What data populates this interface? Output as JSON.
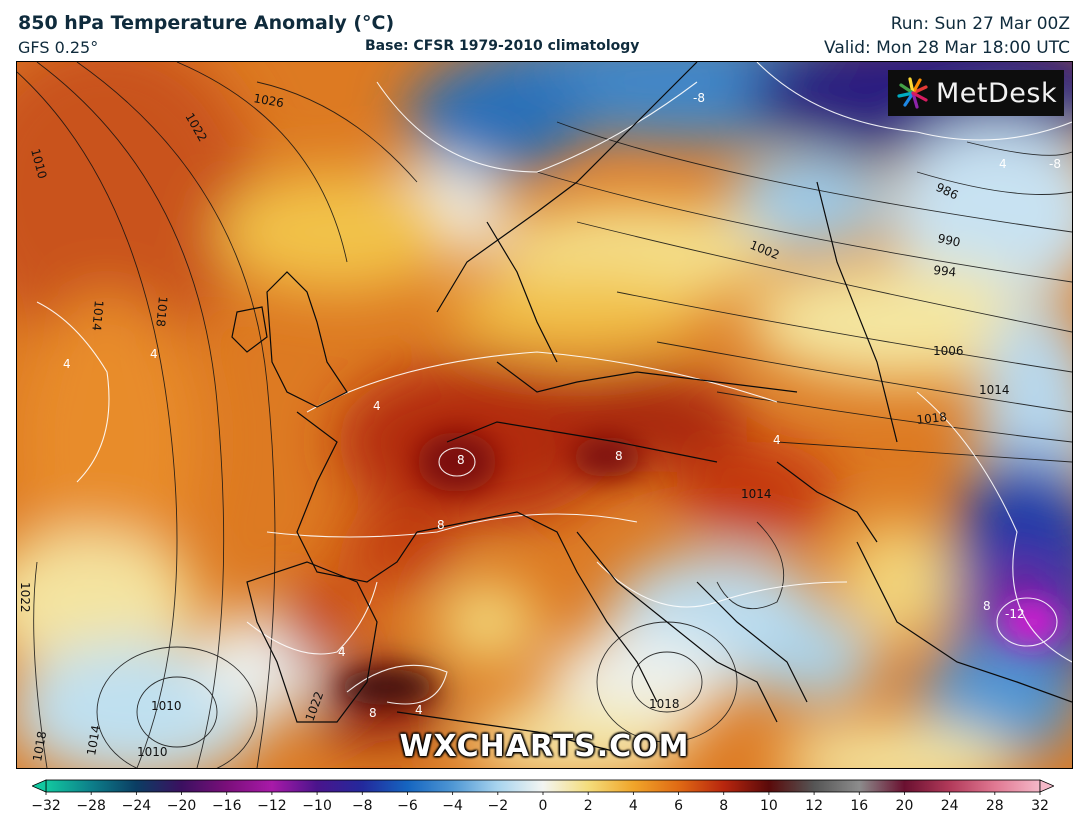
{
  "header": {
    "title": "850 hPa Temperature Anomaly (°C)",
    "model": "GFS 0.25°",
    "base": "Base: CFSR 1979-2010 climatology",
    "run": "Run: Sun 27 Mar 00Z",
    "valid": "Valid: Mon 28 Mar 18:00 UTC"
  },
  "branding": {
    "logo_text": "MetDesk",
    "watermark": "WXCHARTS.COM"
  },
  "isobar_labels": [
    {
      "text": "1026"
    },
    {
      "text": "1022"
    },
    {
      "text": "1010"
    },
    {
      "text": "1014"
    },
    {
      "text": "1018"
    },
    {
      "text": "986"
    },
    {
      "text": "990"
    },
    {
      "text": "994"
    },
    {
      "text": "1002"
    },
    {
      "text": "1006"
    },
    {
      "text": "1014"
    },
    {
      "text": "1018"
    },
    {
      "text": "1022"
    },
    {
      "text": "1010"
    },
    {
      "text": "1010"
    },
    {
      "text": "1014"
    },
    {
      "text": "1018"
    },
    {
      "text": "1018"
    },
    {
      "text": "1014"
    },
    {
      "text": "1022"
    }
  ],
  "anomaly_labels": [
    {
      "text": "-8"
    },
    {
      "text": "-8"
    },
    {
      "text": "4"
    },
    {
      "text": "4"
    },
    {
      "text": "4"
    },
    {
      "text": "8"
    },
    {
      "text": "8"
    },
    {
      "text": "8"
    },
    {
      "text": "4"
    },
    {
      "text": "8"
    },
    {
      "text": "4"
    },
    {
      "text": "8"
    },
    {
      "text": "-12"
    },
    {
      "text": "4"
    },
    {
      "text": "4"
    }
  ],
  "colorbar": {
    "ticks": [
      "-32",
      "-28",
      "-24",
      "-20",
      "-16",
      "-12",
      "-10",
      "-8",
      "-6",
      "-4",
      "-2",
      "0",
      "2",
      "4",
      "6",
      "8",
      "10",
      "12",
      "16",
      "20",
      "24",
      "28",
      "32"
    ],
    "colors": [
      "#12c8a0",
      "#0d7f8a",
      "#0b3d63",
      "#3b1060",
      "#7a0f7a",
      "#a81aa8",
      "#4a148c",
      "#23299c",
      "#1565c0",
      "#4f97d4",
      "#a8d4ee",
      "#f3f5f2",
      "#f4dd7c",
      "#f0a52a",
      "#e06a14",
      "#b8260e",
      "#5a0a0a",
      "#555555",
      "#8c8c8c",
      "#6a1030",
      "#b23a5a",
      "#e07892",
      "#f4b8c8"
    ]
  }
}
